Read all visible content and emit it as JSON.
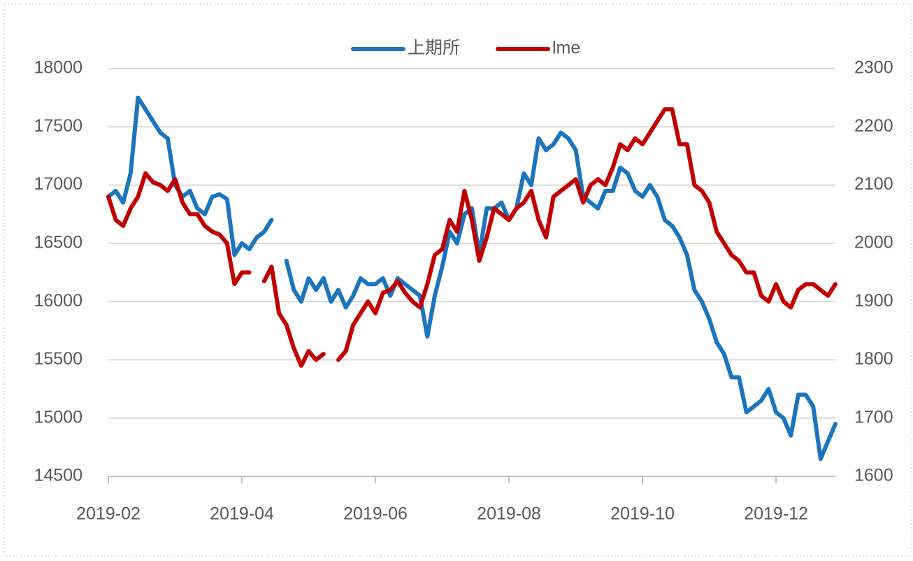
{
  "chart_data": {
    "type": "line",
    "categories": [
      "2019-02",
      null,
      null,
      null,
      null,
      null,
      null,
      null,
      null,
      null,
      null,
      null,
      null,
      null,
      null,
      null,
      null,
      null,
      "2019-04",
      null,
      null,
      null,
      null,
      null,
      null,
      null,
      null,
      null,
      null,
      null,
      null,
      null,
      null,
      null,
      null,
      null,
      "2019-06",
      null,
      null,
      null,
      null,
      null,
      null,
      null,
      null,
      null,
      null,
      null,
      null,
      null,
      null,
      null,
      null,
      null,
      "2019-08",
      null,
      null,
      null,
      null,
      null,
      null,
      null,
      null,
      null,
      null,
      null,
      null,
      null,
      null,
      null,
      null,
      null,
      "2019-10",
      null,
      null,
      null,
      null,
      null,
      null,
      null,
      null,
      null,
      null,
      null,
      null,
      null,
      null,
      null,
      null,
      null,
      "2019-12",
      null,
      null,
      null,
      null,
      null,
      null,
      null,
      null
    ],
    "series": [
      {
        "name": "上期所",
        "color": "#1c75bc",
        "axis": "y",
        "values": [
          16900,
          16950,
          16850,
          17100,
          17750,
          17650,
          17550,
          17450,
          17400,
          17000,
          16900,
          16950,
          16800,
          16750,
          16900,
          16920,
          16880,
          16400,
          16500,
          16450,
          16550,
          16600,
          16700,
          null,
          16350,
          16100,
          16000,
          16200,
          16100,
          16200,
          16000,
          16100,
          15950,
          16050,
          16200,
          16150,
          16150,
          16200,
          16050,
          16200,
          16150,
          16100,
          16050,
          15700,
          16050,
          16300,
          16600,
          16500,
          16750,
          16800,
          16400,
          16800,
          16800,
          16850,
          16700,
          16800,
          17100,
          17000,
          17400,
          17300,
          17350,
          17450,
          17400,
          17300,
          16900,
          16850,
          16800,
          16950,
          16950,
          17150,
          17100,
          16950,
          16900,
          17000,
          16900,
          16700,
          16650,
          16550,
          16400,
          16100,
          16000,
          15850,
          15650,
          15550,
          15350,
          15350,
          15050,
          15100,
          15150,
          15250,
          15050,
          15000,
          14850,
          15200,
          15200,
          15100,
          14650,
          14800,
          14950
        ]
      },
      {
        "name": "lme",
        "color": "#c00000",
        "axis": "y2",
        "values": [
          2080,
          2040,
          2030,
          2060,
          2080,
          2120,
          2105,
          2100,
          2090,
          2110,
          2070,
          2050,
          2050,
          2030,
          2020,
          2015,
          2000,
          1930,
          1950,
          1950,
          null,
          1935,
          1960,
          1880,
          1860,
          1820,
          1790,
          1815,
          1800,
          1810,
          null,
          1800,
          1815,
          1860,
          1880,
          1900,
          1880,
          1915,
          1920,
          1935,
          1915,
          1900,
          1890,
          1930,
          1980,
          1990,
          2040,
          2020,
          2090,
          2040,
          1970,
          2010,
          2060,
          2050,
          2040,
          2060,
          2070,
          2090,
          2040,
          2010,
          2080,
          2090,
          2100,
          2110,
          2070,
          2100,
          2110,
          2100,
          2130,
          2170,
          2160,
          2180,
          2170,
          2190,
          2210,
          2230,
          2230,
          2170,
          2170,
          2100,
          2090,
          2070,
          2020,
          2000,
          1980,
          1970,
          1950,
          1950,
          1910,
          1900,
          1930,
          1900,
          1890,
          1920,
          1930,
          1930,
          1920,
          1910,
          1930
        ]
      }
    ],
    "ylim": [
      14500,
      18000
    ],
    "yticks": [
      14500,
      15000,
      15500,
      16000,
      16500,
      17000,
      17500,
      18000
    ],
    "y2lim": [
      1600,
      2300
    ],
    "y2ticks": [
      1600,
      1700,
      1800,
      1900,
      2000,
      2100,
      2200,
      2300
    ],
    "grid": true,
    "legend": "top"
  }
}
